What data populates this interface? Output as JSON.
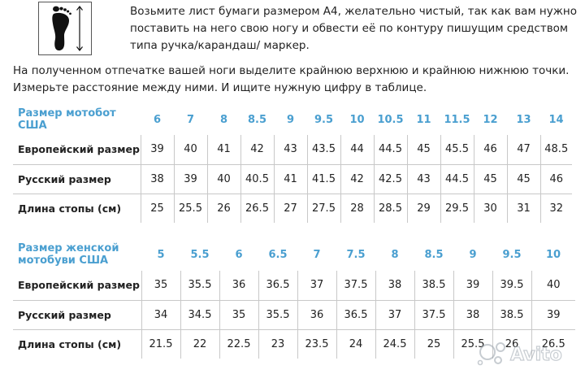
{
  "instructions": {
    "step1": "Возьмите лист бумаги размером А4, желательно чистый, так как вам нужно поставить на него свою ногу и обвести её по контуру пишущим средством типа ручка/карандаш/ маркер.",
    "step2": "На полученном отпечатке вашей ноги выделите крайнюю верхнюю и крайнюю нижнюю точки. Измерьте расстояние между ними. И ищите нужную цифру в таблице."
  },
  "icons": {
    "foot_measure": "foot-measure-icon",
    "watermark": "avito-logo"
  },
  "watermark_text": "Avito",
  "colors": {
    "header_blue": "#4a9fd0",
    "grid_line": "#c8c8c8",
    "text": "#222222"
  },
  "moto_table": {
    "header_label": "Размер мотобот США",
    "header_values": [
      "6",
      "7",
      "8",
      "8.5",
      "9",
      "9.5",
      "10",
      "10.5",
      "11",
      "11.5",
      "12",
      "13",
      "14"
    ],
    "rows": [
      {
        "label": "Европейский размер",
        "values": [
          "39",
          "40",
          "41",
          "42",
          "43",
          "43.5",
          "44",
          "44.5",
          "45",
          "45.5",
          "46",
          "47",
          "48.5"
        ]
      },
      {
        "label": "Русский размер",
        "values": [
          "38",
          "39",
          "40",
          "40.5",
          "41",
          "41.5",
          "42",
          "42.5",
          "43",
          "44.5",
          "45",
          "45",
          "46"
        ]
      },
      {
        "label": "Длина стопы (см)",
        "values": [
          "25",
          "25.5",
          "26",
          "26.5",
          "27",
          "27.5",
          "28",
          "28.5",
          "29",
          "29.5",
          "30",
          "31",
          "32"
        ]
      }
    ]
  },
  "women_table": {
    "header_label_line1": "Размер женской",
    "header_label_line2": "мотобуви США",
    "header_values": [
      "5",
      "5.5",
      "6",
      "6.5",
      "7",
      "7.5",
      "8",
      "8.5",
      "9",
      "9.5",
      "10"
    ],
    "rows": [
      {
        "label": "Европейский размер",
        "values": [
          "35",
          "35.5",
          "36",
          "36.5",
          "37",
          "37.5",
          "38",
          "38.5",
          "39",
          "39.5",
          "40"
        ]
      },
      {
        "label": "Русский размер",
        "values": [
          "34",
          "34.5",
          "35",
          "35.5",
          "36",
          "36.5",
          "37",
          "37.5",
          "38",
          "38.5",
          "39"
        ]
      },
      {
        "label": "Длина стопы (см)",
        "values": [
          "21.5",
          "22",
          "22.5",
          "23",
          "23.5",
          "24",
          "24.5",
          "25",
          "25.5",
          "26",
          "26.5"
        ]
      }
    ]
  }
}
